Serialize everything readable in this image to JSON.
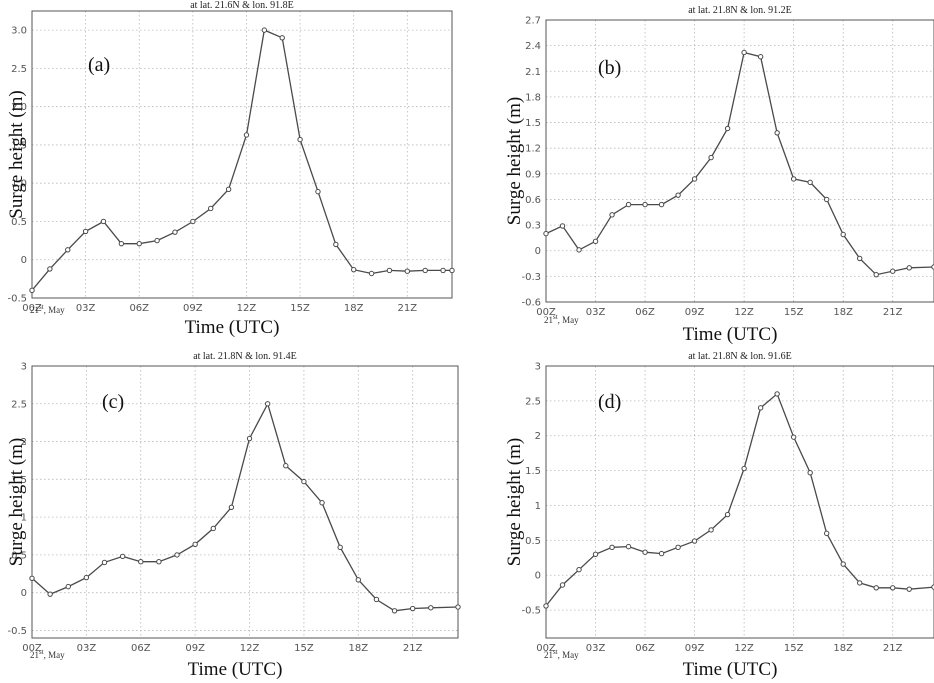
{
  "chart_data": [
    {
      "type": "line",
      "panel_label": "(a)",
      "title": "at lat. 21.6N & lon. 91.8E",
      "xlabel": "Time (UTC)",
      "ylabel": "Surge height (m)",
      "date_label": "21",
      "date_sup": "st",
      "date_month": ", May",
      "xticks": [
        "00Z",
        "03Z",
        "06Z",
        "09Z",
        "12Z",
        "15Z",
        "18Z",
        "21Z"
      ],
      "yticks": [
        "-0.5",
        "0",
        "0.5",
        "1.0",
        "1.5",
        "2.0",
        "2.5",
        "3.0"
      ],
      "xlim": [
        0,
        23.5
      ],
      "ylim": [
        -0.5,
        3.25
      ],
      "grid": true,
      "series": [
        {
          "x": [
            0,
            1,
            2,
            3,
            4,
            5,
            6,
            7,
            8,
            9,
            10,
            11,
            12,
            13,
            14,
            15,
            16,
            17,
            18,
            19,
            20,
            21,
            22,
            23,
            23.5
          ],
          "values": [
            -0.4,
            -0.12,
            0.13,
            0.37,
            0.5,
            0.21,
            0.21,
            0.25,
            0.36,
            0.5,
            0.67,
            0.92,
            1.63,
            3.0,
            2.9,
            1.57,
            0.89,
            0.2,
            -0.13,
            -0.18,
            -0.14,
            -0.15,
            -0.14,
            -0.14,
            -0.14
          ]
        }
      ]
    },
    {
      "type": "line",
      "panel_label": "(b)",
      "title": "at lat. 21.8N & lon. 91.2E",
      "xlabel": "Time (UTC)",
      "ylabel": "Surge height (m)",
      "date_label": "21",
      "date_sup": "st",
      "date_month": ", May",
      "xticks": [
        "00Z",
        "03Z",
        "06Z",
        "09Z",
        "12Z",
        "15Z",
        "18Z",
        "21Z"
      ],
      "yticks": [
        "-0.6",
        "-0.3",
        "0",
        "0.3",
        "0.6",
        "0.9",
        "1.2",
        "1.5",
        "1.8",
        "2.1",
        "2.4",
        "2.7"
      ],
      "xlim": [
        0,
        23.5
      ],
      "ylim": [
        -0.6,
        2.7
      ],
      "grid": true,
      "series": [
        {
          "x": [
            0,
            1,
            2,
            3,
            4,
            5,
            6,
            7,
            8,
            9,
            10,
            11,
            12,
            13,
            14,
            15,
            16,
            17,
            18,
            19,
            20,
            21,
            22,
            23.5
          ],
          "values": [
            0.2,
            0.29,
            0.01,
            0.11,
            0.42,
            0.54,
            0.54,
            0.54,
            0.65,
            0.84,
            1.09,
            1.43,
            2.32,
            2.27,
            1.38,
            0.84,
            0.8,
            0.6,
            0.19,
            -0.09,
            -0.28,
            -0.24,
            -0.2,
            -0.19
          ]
        }
      ]
    },
    {
      "type": "line",
      "panel_label": "(c)",
      "title": "at lat. 21.8N & lon. 91.4E",
      "xlabel": "Time (UTC)",
      "ylabel": "Surge height (m)",
      "date_label": "21",
      "date_sup": "st",
      "date_month": ", May",
      "xticks": [
        "00Z",
        "03Z",
        "06Z",
        "09Z",
        "12Z",
        "15Z",
        "18Z",
        "21Z"
      ],
      "yticks": [
        "-0.5",
        "0",
        "0.5",
        "1",
        "1.5",
        "2",
        "2.5",
        "3"
      ],
      "xlim": [
        0,
        23.5
      ],
      "ylim": [
        -0.6,
        3.0
      ],
      "grid": true,
      "series": [
        {
          "x": [
            0,
            1,
            2,
            3,
            4,
            5,
            6,
            7,
            8,
            9,
            10,
            11,
            12,
            13,
            14,
            15,
            16,
            17,
            18,
            19,
            20,
            21,
            22,
            23.5
          ],
          "values": [
            0.19,
            -0.02,
            0.08,
            0.2,
            0.4,
            0.48,
            0.41,
            0.41,
            0.5,
            0.64,
            0.85,
            1.13,
            2.04,
            2.5,
            1.68,
            1.47,
            1.19,
            0.6,
            0.17,
            -0.09,
            -0.24,
            -0.21,
            -0.2,
            -0.19
          ]
        }
      ]
    },
    {
      "type": "line",
      "panel_label": "(d)",
      "title": "at lat. 21.8N & lon. 91.6E",
      "xlabel": "Time (UTC)",
      "ylabel": "Surge height (m)",
      "date_label": "21",
      "date_sup": "st",
      "date_month": ", May",
      "xticks": [
        "00Z",
        "03Z",
        "06Z",
        "09Z",
        "12Z",
        "15Z",
        "18Z",
        "21Z"
      ],
      "yticks": [
        "-0.5",
        "0",
        "0.5",
        "1",
        "1.5",
        "2",
        "2.5",
        "3"
      ],
      "xlim": [
        0,
        23.5
      ],
      "ylim": [
        -0.9,
        3.0
      ],
      "grid": true,
      "series": [
        {
          "x": [
            0,
            1,
            2,
            3,
            4,
            5,
            6,
            7,
            8,
            9,
            10,
            11,
            12,
            13,
            14,
            15,
            16,
            17,
            18,
            19,
            20,
            21,
            22,
            23.5
          ],
          "values": [
            -0.44,
            -0.14,
            0.08,
            0.3,
            0.4,
            0.41,
            0.33,
            0.31,
            0.4,
            0.49,
            0.65,
            0.87,
            1.53,
            2.4,
            2.6,
            1.98,
            1.47,
            0.6,
            0.16,
            -0.11,
            -0.18,
            -0.18,
            -0.2,
            -0.17
          ]
        }
      ]
    }
  ],
  "colors": {
    "line": "#4a4a4a",
    "marker_fill": "#ffffff",
    "grid": "#b8b8b8",
    "frame": "#555555"
  }
}
